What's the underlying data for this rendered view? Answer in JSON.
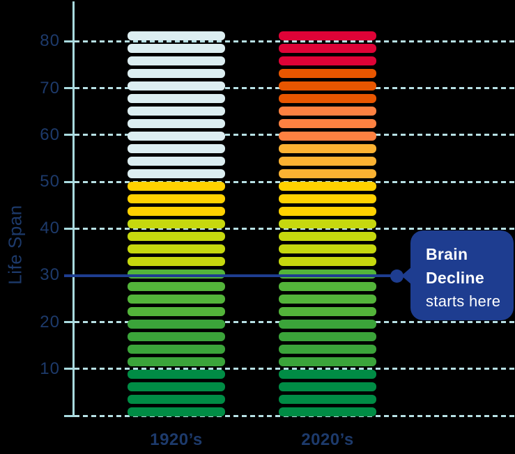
{
  "chart_data": {
    "type": "bar",
    "title": "",
    "ylabel": "Life Span",
    "xlabel": "",
    "categories": [
      "1920’s",
      "2020’s"
    ],
    "yticks": [
      80,
      70,
      60,
      50,
      40,
      30,
      20,
      10
    ],
    "ylim": [
      0,
      88
    ],
    "bar_top_value": 82,
    "segments_per_bar": 31,
    "grid": "dashed horizontal, light cyan, behind bars",
    "legend": "none",
    "series": [
      {
        "name": "1920’s",
        "total_value": 82,
        "segment_colors": [
          {
            "color": "pale",
            "count": 12
          },
          {
            "color": "gold",
            "count": 3
          },
          {
            "color": "yellow_green",
            "count": 4
          },
          {
            "color": "light_green",
            "count": 4
          },
          {
            "color": "mid_green",
            "count": 4
          },
          {
            "color": "dark_green",
            "count": 4
          }
        ]
      },
      {
        "name": "2020’s",
        "total_value": 82,
        "segment_colors": [
          {
            "color": "red",
            "count": 3
          },
          {
            "color": "dark_orange",
            "count": 3
          },
          {
            "color": "orange",
            "count": 3
          },
          {
            "color": "amber",
            "count": 3
          },
          {
            "color": "gold",
            "count": 3
          },
          {
            "color": "yellow_green",
            "count": 4
          },
          {
            "color": "light_green",
            "count": 4
          },
          {
            "color": "mid_green",
            "count": 4
          },
          {
            "color": "dark_green",
            "count": 4
          }
        ]
      }
    ],
    "annotation": {
      "y_value": 30,
      "line1": "Brain",
      "line2": "Decline",
      "line3": "starts here"
    }
  },
  "palette": {
    "pale": "#dceef1",
    "gold": "#ffd100",
    "yellow_green": "#c6d80e",
    "light_green": "#53b43a",
    "mid_green": "#3ba43a",
    "dark_green": "#008c45",
    "red": "#de0337",
    "dark_orange": "#e85600",
    "orange": "#fd8141",
    "amber": "#fbb232",
    "navy_annotation": "#1e3d90",
    "axis_light_blue": "#a9dbdf",
    "grid_dash_blue": "#b7e0e4",
    "label_navy": "#1d3a6b",
    "callout_text": "#ffffff",
    "background": "#000000"
  }
}
